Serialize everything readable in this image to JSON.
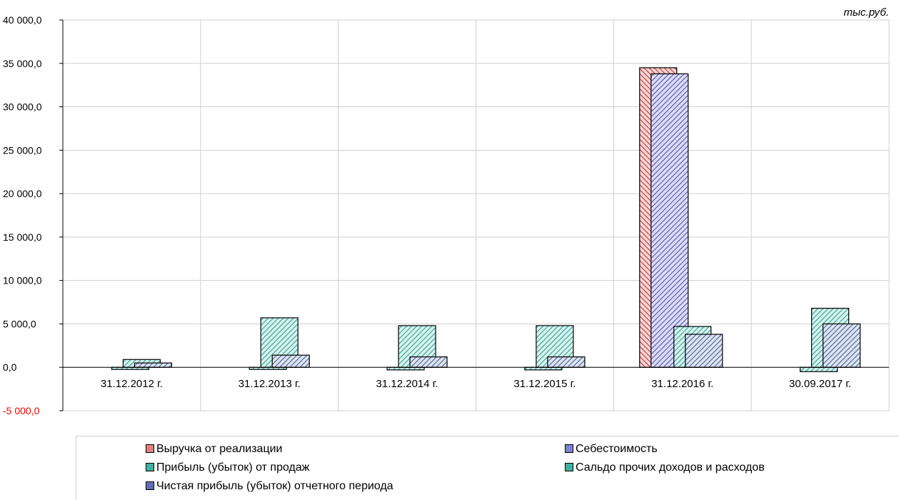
{
  "chart_data": {
    "type": "bar",
    "unit_label": "тыс.руб.",
    "categories": [
      "31.12.2012 г.",
      "31.12.2013 г.",
      "31.12.2014 г.",
      "31.12.2015 г.",
      "31.12.2016 г.",
      "30.09.2017 г."
    ],
    "ylim": [
      -5000,
      40000
    ],
    "yticks": [
      -5000,
      0,
      5000,
      10000,
      15000,
      20000,
      25000,
      30000,
      35000,
      40000
    ],
    "ytick_labels": [
      "-5 000,0",
      "0,0",
      "5 000,0",
      "10 000,0",
      "15 000,0",
      "20 000,0",
      "25 000,0",
      "30 000,0",
      "35 000,0",
      "40 000,0"
    ],
    "negative_tick_color": "#ff0000",
    "grid": true,
    "legend_position": "bottom",
    "series": [
      {
        "name": "Выручка от реализации",
        "color": "#e08080",
        "values": [
          0,
          0,
          0,
          0,
          34500,
          0
        ]
      },
      {
        "name": "Себестоимость",
        "color": "#8080d0",
        "values": [
          0,
          0,
          0,
          0,
          33800,
          0
        ]
      },
      {
        "name": "Прибыль (убыток) от продаж",
        "color": "#40b0a0",
        "values": [
          900,
          5700,
          4800,
          4800,
          4700,
          6800
        ]
      },
      {
        "name": "Сальдо прочих доходов и расходов",
        "color": "#40b0a0",
        "values": [
          -200,
          -200,
          -300,
          -300,
          0,
          -500
        ]
      },
      {
        "name": "Чистая прибыль (убыток) отчетного периода",
        "color": "#6070b0",
        "values": [
          500,
          1400,
          1200,
          1200,
          3800,
          5000
        ]
      }
    ]
  }
}
